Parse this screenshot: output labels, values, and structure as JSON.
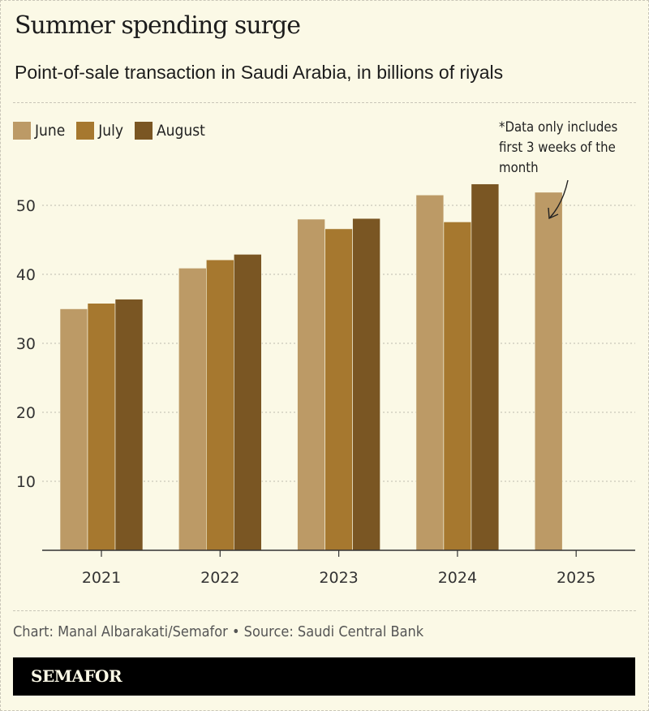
{
  "chart_data": {
    "type": "bar",
    "title": "Summer spending surge",
    "subtitle": "Point-of-sale transaction in Saudi Arabia, in billions of riyals",
    "categories": [
      "2021",
      "2022",
      "2023",
      "2024",
      "2025"
    ],
    "series": [
      {
        "name": "June",
        "color": "#bc9a66",
        "values": [
          35.0,
          40.9,
          48.0,
          51.5,
          51.9
        ]
      },
      {
        "name": "July",
        "color": "#a6782f",
        "values": [
          35.8,
          42.1,
          46.6,
          47.6,
          null
        ]
      },
      {
        "name": "August",
        "color": "#7a5623",
        "values": [
          36.4,
          42.9,
          48.1,
          53.1,
          null
        ]
      }
    ],
    "ylim": [
      0,
      50
    ],
    "yticks": [
      "10",
      "20",
      "30",
      "40",
      "50"
    ],
    "grid": true,
    "legend_placement": "top-left",
    "annotation": "*Data only includes first 3 weeks of the month"
  },
  "footer": {
    "credit": "Chart: Manal Albarakati/Semafor • Source: Saudi Central Bank",
    "brand": "SEMAFOR"
  },
  "colors": {
    "background": "#fbf9e6",
    "brand_bar": "#000000"
  }
}
